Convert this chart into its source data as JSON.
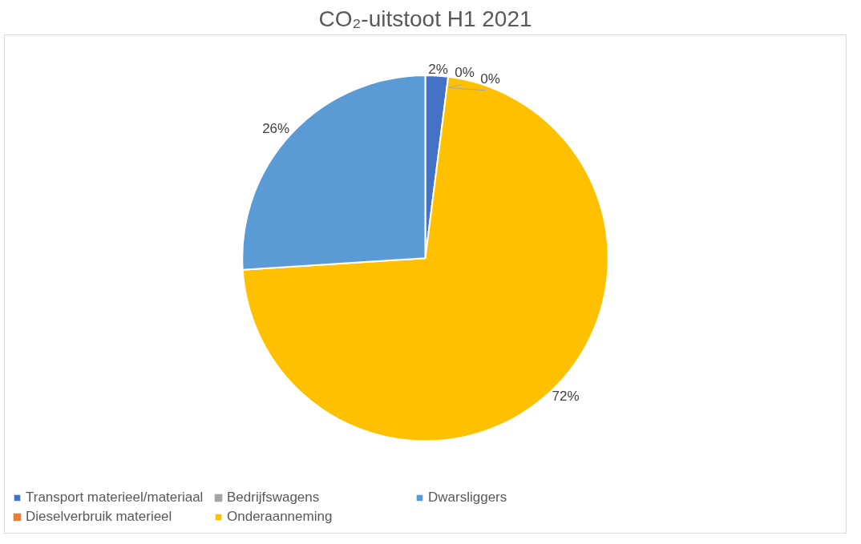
{
  "chart_data": {
    "type": "pie",
    "title": "CO₂-uitstoot H1 2021",
    "categories": [
      "Transport materieel/materiaal",
      "Dieselverbruik materieel",
      "Bedrijfswagens",
      "Onderaanneming",
      "Dwarsliggers"
    ],
    "values": [
      2,
      0,
      0,
      72,
      26
    ],
    "colors": [
      "#4472c4",
      "#ed7d31",
      "#a5a5a5",
      "#ffc000",
      "#5b9bd5"
    ],
    "value_labels": [
      "2%",
      "0%",
      "0%",
      "72%",
      "26%"
    ],
    "legend": "bottom"
  }
}
